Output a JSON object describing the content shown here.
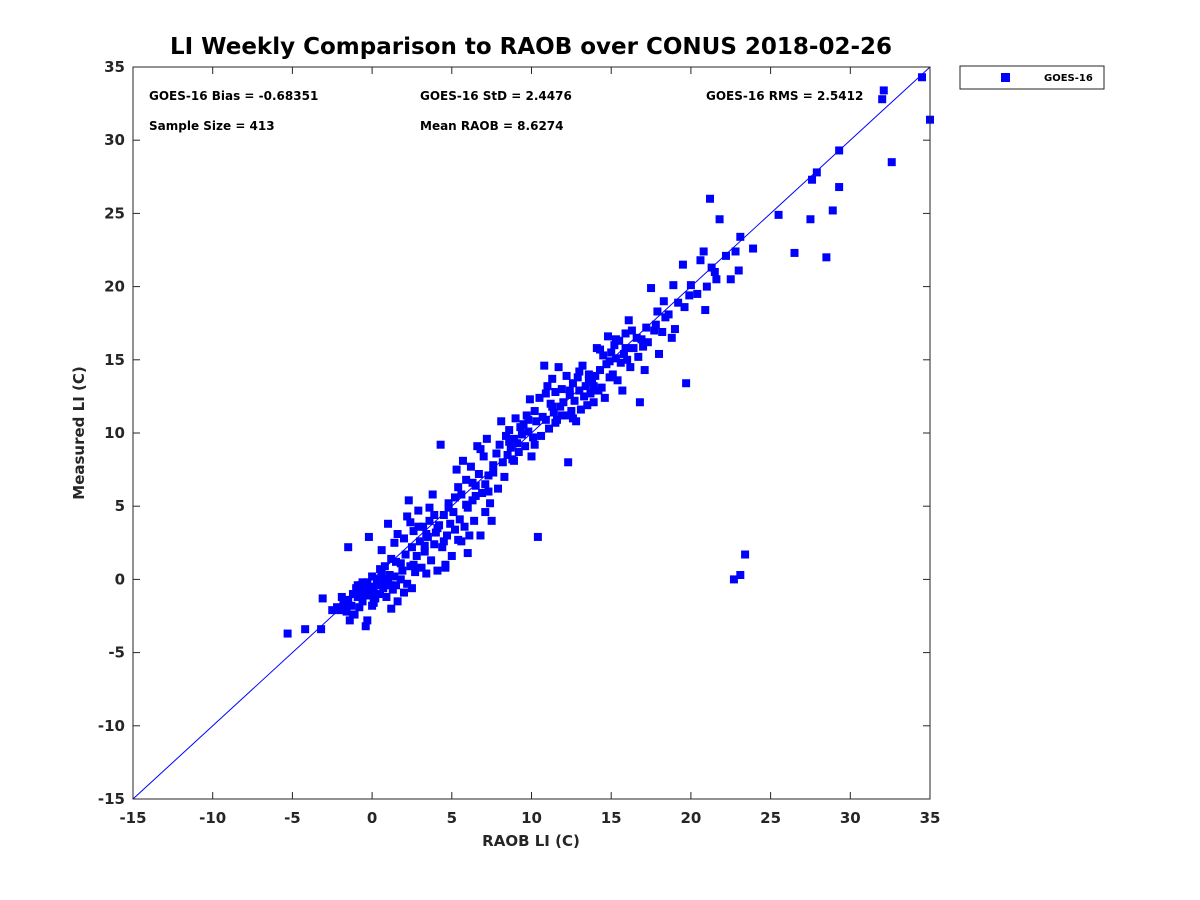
{
  "chart_data": {
    "type": "scatter",
    "title": "LI Weekly Comparison to RAOB over CONUS 2018-02-26",
    "xlabel": "RAOB LI (C)",
    "ylabel": "Measured LI (C)",
    "xlim": [
      -15,
      35
    ],
    "ylim": [
      -15,
      35
    ],
    "xticks": [
      "-15",
      "-10",
      "-5",
      "0",
      "5",
      "10",
      "15",
      "20",
      "25",
      "30",
      "35"
    ],
    "yticks": [
      "-15",
      "-10",
      "-5",
      "0",
      "5",
      "10",
      "15",
      "20",
      "25",
      "30",
      "35"
    ],
    "grid": false,
    "legend_position": "top-right, outside plot",
    "reference_line": {
      "label": "1:1 line",
      "from": [
        -15,
        -15
      ],
      "to": [
        35,
        35
      ],
      "color": "#0000ff"
    },
    "stats": {
      "bias": "GOES-16 Bias = -0.68351",
      "std": "GOES-16 StD = 2.4476",
      "rms": "GOES-16 RMS = 2.5412",
      "sample_size": "Sample Size = 413",
      "mean_raob": "Mean RAOB = 8.6274"
    },
    "series": [
      {
        "name": "GOES-16",
        "color": "#0000ff",
        "marker": "square",
        "points": [
          [
            -5.3,
            -3.7
          ],
          [
            -4.2,
            -3.4
          ],
          [
            -3.2,
            -3.4
          ],
          [
            -3.1,
            -1.3
          ],
          [
            -2.5,
            -2.1
          ],
          [
            -2.2,
            -1.9
          ],
          [
            -2.0,
            -2.1
          ],
          [
            -1.8,
            -1.6
          ],
          [
            -1.6,
            -2.2
          ],
          [
            -1.5,
            -1.4
          ],
          [
            -1.4,
            -2.8
          ],
          [
            -1.3,
            -1.8
          ],
          [
            -1.2,
            -1.0
          ],
          [
            -1.1,
            -2.4
          ],
          [
            -1.0,
            -0.6
          ],
          [
            -0.9,
            -1.2
          ],
          [
            -0.8,
            -1.9
          ],
          [
            -0.7,
            -0.4
          ],
          [
            -0.6,
            -1.5
          ],
          [
            -0.5,
            -0.9
          ],
          [
            -0.4,
            -3.2
          ],
          [
            -0.3,
            -0.2
          ],
          [
            -0.3,
            -2.8
          ],
          [
            -0.2,
            -1.1
          ],
          [
            -0.1,
            -0.5
          ],
          [
            0.0,
            -1.8
          ],
          [
            0.0,
            0.2
          ],
          [
            0.1,
            -0.8
          ],
          [
            0.2,
            -1.3
          ],
          [
            0.3,
            0.0
          ],
          [
            0.4,
            -0.3
          ],
          [
            0.5,
            -1.0
          ],
          [
            0.6,
            0.4
          ],
          [
            0.7,
            -0.6
          ],
          [
            0.8,
            0.9
          ],
          [
            0.9,
            -1.2
          ],
          [
            1.0,
            -0.1
          ],
          [
            1.1,
            0.3
          ],
          [
            1.2,
            -2.0
          ],
          [
            1.3,
            -0.7
          ],
          [
            1.4,
            0.2
          ],
          [
            1.5,
            -0.4
          ],
          [
            1.6,
            -1.5
          ],
          [
            1.8,
            0.0
          ],
          [
            2.0,
            -0.9
          ],
          [
            2.2,
            -0.3
          ],
          [
            2.5,
            -0.6
          ],
          [
            -1.5,
            2.2
          ],
          [
            -0.2,
            2.9
          ],
          [
            0.6,
            2.0
          ],
          [
            1.0,
            3.8
          ],
          [
            1.2,
            1.4
          ],
          [
            1.4,
            2.5
          ],
          [
            1.6,
            3.1
          ],
          [
            1.8,
            1.1
          ],
          [
            2.0,
            2.8
          ],
          [
            2.2,
            4.3
          ],
          [
            2.3,
            5.4
          ],
          [
            2.4,
            0.9
          ],
          [
            2.5,
            2.2
          ],
          [
            2.6,
            3.3
          ],
          [
            2.7,
            0.5
          ],
          [
            2.8,
            1.6
          ],
          [
            2.9,
            4.7
          ],
          [
            3.0,
            2.6
          ],
          [
            3.1,
            0.8
          ],
          [
            3.2,
            3.6
          ],
          [
            3.3,
            1.9
          ],
          [
            3.4,
            0.4
          ],
          [
            3.5,
            2.9
          ],
          [
            3.6,
            4.0
          ],
          [
            3.7,
            1.3
          ],
          [
            3.8,
            5.8
          ],
          [
            3.9,
            2.4
          ],
          [
            4.0,
            3.2
          ],
          [
            4.1,
            0.6
          ],
          [
            4.2,
            3.7
          ],
          [
            4.3,
            9.2
          ],
          [
            4.4,
            2.2
          ],
          [
            4.5,
            4.4
          ],
          [
            4.6,
            1.0
          ],
          [
            4.7,
            3.0
          ],
          [
            4.8,
            5.2
          ],
          [
            4.9,
            3.8
          ],
          [
            5.0,
            1.6
          ],
          [
            5.1,
            4.6
          ],
          [
            5.2,
            3.4
          ],
          [
            5.3,
            7.5
          ],
          [
            5.4,
            2.7
          ],
          [
            5.5,
            4.1
          ],
          [
            5.6,
            5.8
          ],
          [
            5.7,
            8.1
          ],
          [
            5.8,
            3.6
          ],
          [
            5.9,
            6.8
          ],
          [
            6.0,
            4.9
          ],
          [
            6.1,
            3.0
          ],
          [
            6.2,
            7.7
          ],
          [
            6.3,
            5.4
          ],
          [
            6.4,
            4.0
          ],
          [
            6.5,
            6.4
          ],
          [
            6.6,
            9.1
          ],
          [
            6.7,
            7.2
          ],
          [
            6.8,
            3.0
          ],
          [
            6.9,
            5.9
          ],
          [
            7.0,
            8.4
          ],
          [
            7.1,
            6.5
          ],
          [
            7.2,
            9.6
          ],
          [
            7.3,
            7.1
          ],
          [
            7.4,
            5.2
          ],
          [
            7.5,
            4.0
          ],
          [
            7.6,
            7.8
          ],
          [
            7.8,
            8.6
          ],
          [
            7.9,
            6.2
          ],
          [
            8.0,
            9.2
          ],
          [
            8.1,
            10.8
          ],
          [
            8.2,
            8.0
          ],
          [
            8.3,
            7.0
          ],
          [
            8.4,
            9.8
          ],
          [
            8.5,
            8.5
          ],
          [
            8.6,
            10.2
          ],
          [
            8.7,
            9.0
          ],
          [
            8.8,
            8.2
          ],
          [
            8.9,
            9.6
          ],
          [
            9.0,
            11.0
          ],
          [
            9.1,
            9.3
          ],
          [
            9.2,
            8.7
          ],
          [
            9.3,
            10.4
          ],
          [
            9.4,
            9.9
          ],
          [
            9.5,
            10.6
          ],
          [
            9.6,
            9.1
          ],
          [
            9.7,
            11.2
          ],
          [
            9.8,
            10.1
          ],
          [
            9.9,
            12.3
          ],
          [
            10.0,
            8.4
          ],
          [
            10.1,
            9.7
          ],
          [
            10.2,
            11.5
          ],
          [
            10.3,
            10.8
          ],
          [
            10.4,
            2.9
          ],
          [
            10.5,
            12.4
          ],
          [
            10.6,
            9.8
          ],
          [
            10.7,
            11.1
          ],
          [
            10.8,
            14.6
          ],
          [
            10.9,
            10.9
          ],
          [
            11.0,
            13.2
          ],
          [
            11.1,
            10.3
          ],
          [
            11.2,
            12.0
          ],
          [
            11.3,
            13.7
          ],
          [
            11.4,
            11.4
          ],
          [
            11.5,
            12.8
          ],
          [
            11.6,
            10.9
          ],
          [
            11.7,
            14.5
          ],
          [
            11.8,
            11.8
          ],
          [
            11.9,
            13.0
          ],
          [
            12.0,
            12.1
          ],
          [
            12.1,
            11.2
          ],
          [
            12.2,
            13.9
          ],
          [
            12.3,
            8.0
          ],
          [
            12.4,
            12.6
          ],
          [
            12.5,
            11.5
          ],
          [
            12.6,
            13.4
          ],
          [
            12.7,
            12.2
          ],
          [
            12.8,
            10.8
          ],
          [
            12.9,
            13.8
          ],
          [
            13.0,
            12.9
          ],
          [
            13.1,
            11.6
          ],
          [
            13.2,
            14.6
          ],
          [
            13.3,
            12.5
          ],
          [
            13.4,
            13.2
          ],
          [
            13.5,
            11.9
          ],
          [
            13.6,
            14.0
          ],
          [
            13.7,
            12.7
          ],
          [
            13.8,
            13.5
          ],
          [
            13.9,
            12.1
          ],
          [
            14.0,
            13.9
          ],
          [
            14.1,
            15.8
          ],
          [
            14.2,
            12.9
          ],
          [
            14.3,
            14.3
          ],
          [
            14.4,
            13.1
          ],
          [
            14.5,
            15.3
          ],
          [
            14.6,
            12.4
          ],
          [
            14.7,
            14.7
          ],
          [
            14.8,
            16.6
          ],
          [
            14.9,
            13.8
          ],
          [
            15.0,
            15.5
          ],
          [
            15.1,
            14.0
          ],
          [
            15.2,
            16.0
          ],
          [
            15.3,
            15.1
          ],
          [
            15.4,
            13.6
          ],
          [
            15.5,
            16.3
          ],
          [
            15.6,
            14.8
          ],
          [
            15.7,
            12.9
          ],
          [
            15.8,
            15.4
          ],
          [
            15.9,
            16.8
          ],
          [
            16.0,
            15.0
          ],
          [
            16.1,
            17.7
          ],
          [
            16.2,
            14.5
          ],
          [
            16.4,
            15.8
          ],
          [
            16.6,
            16.5
          ],
          [
            16.8,
            12.1
          ],
          [
            17.0,
            15.9
          ],
          [
            17.1,
            14.3
          ],
          [
            17.2,
            17.2
          ],
          [
            17.3,
            16.2
          ],
          [
            17.5,
            19.9
          ],
          [
            17.7,
            17.0
          ],
          [
            17.9,
            18.3
          ],
          [
            18.0,
            15.4
          ],
          [
            18.2,
            16.9
          ],
          [
            18.4,
            17.9
          ],
          [
            18.3,
            19.0
          ],
          [
            18.8,
            16.5
          ],
          [
            18.9,
            20.1
          ],
          [
            19.0,
            17.1
          ],
          [
            19.2,
            18.9
          ],
          [
            19.5,
            21.5
          ],
          [
            19.6,
            18.6
          ],
          [
            19.7,
            13.4
          ],
          [
            20.0,
            20.1
          ],
          [
            20.4,
            19.5
          ],
          [
            20.6,
            21.8
          ],
          [
            20.8,
            22.4
          ],
          [
            20.9,
            18.4
          ],
          [
            21.0,
            20.0
          ],
          [
            21.2,
            26.0
          ],
          [
            21.3,
            21.3
          ],
          [
            21.6,
            20.5
          ],
          [
            21.8,
            24.6
          ],
          [
            22.2,
            22.1
          ],
          [
            22.5,
            20.5
          ],
          [
            23.0,
            21.1
          ],
          [
            23.1,
            23.4
          ],
          [
            23.9,
            22.6
          ],
          [
            25.5,
            24.9
          ],
          [
            26.5,
            22.3
          ],
          [
            27.5,
            24.6
          ],
          [
            27.6,
            27.3
          ],
          [
            27.9,
            27.8
          ],
          [
            28.5,
            22.0
          ],
          [
            28.9,
            25.2
          ],
          [
            29.3,
            29.3
          ],
          [
            29.3,
            26.8
          ],
          [
            32.0,
            32.8
          ],
          [
            32.1,
            33.4
          ],
          [
            32.6,
            28.5
          ],
          [
            34.5,
            34.3
          ],
          [
            35.0,
            31.4
          ],
          [
            23.4,
            1.7
          ],
          [
            23.1,
            0.3
          ],
          [
            22.7,
            0.0
          ],
          [
            4.6,
            0.8
          ],
          [
            6.0,
            1.8
          ],
          [
            5.6,
            2.6
          ],
          [
            3.9,
            4.4
          ],
          [
            2.9,
            3.6
          ],
          [
            4.8,
            4.9
          ],
          [
            6.5,
            5.7
          ],
          [
            7.1,
            4.6
          ],
          [
            6.3,
            6.6
          ],
          [
            5.2,
            5.6
          ],
          [
            3.4,
            3.1
          ],
          [
            2.1,
            1.7
          ],
          [
            1.5,
            1.2
          ],
          [
            0.5,
            0.7
          ],
          [
            -0.2,
            -0.7
          ],
          [
            0.1,
            -1.6
          ],
          [
            1.1,
            -0.4
          ],
          [
            -0.6,
            -0.2
          ],
          [
            -1.9,
            -1.2
          ],
          [
            -1.2,
            -2.4
          ],
          [
            8.6,
            9.4
          ],
          [
            9.8,
            10.9
          ],
          [
            11.9,
            11.2
          ],
          [
            12.4,
            12.9
          ],
          [
            13.6,
            13.6
          ],
          [
            14.9,
            14.9
          ],
          [
            15.9,
            15.8
          ],
          [
            16.9,
            16.4
          ],
          [
            10.9,
            12.7
          ],
          [
            11.5,
            10.7
          ],
          [
            13.0,
            14.2
          ],
          [
            14.3,
            15.7
          ],
          [
            16.3,
            17.0
          ],
          [
            17.8,
            17.4
          ],
          [
            7.6,
            7.3
          ],
          [
            6.8,
            8.9
          ],
          [
            5.4,
            6.3
          ],
          [
            4.1,
            3.5
          ],
          [
            3.3,
            2.3
          ],
          [
            2.6,
            1.0
          ],
          [
            1.9,
            0.6
          ],
          [
            0.8,
            0.0
          ],
          [
            0.3,
            -0.4
          ],
          [
            -0.7,
            -1.0
          ],
          [
            -1.7,
            -1.8
          ],
          [
            -0.9,
            -0.4
          ],
          [
            0.6,
            -0.2
          ],
          [
            2.4,
            3.9
          ],
          [
            3.6,
            4.9
          ],
          [
            4.5,
            2.6
          ],
          [
            5.9,
            5.1
          ],
          [
            7.3,
            6.0
          ],
          [
            8.9,
            8.1
          ],
          [
            10.2,
            9.2
          ],
          [
            11.3,
            11.8
          ],
          [
            12.6,
            11.0
          ],
          [
            13.9,
            13.2
          ],
          [
            15.3,
            16.4
          ],
          [
            16.7,
            15.2
          ],
          [
            18.6,
            18.1
          ],
          [
            19.9,
            19.4
          ],
          [
            21.5,
            21.0
          ],
          [
            22.8,
            22.4
          ]
        ]
      }
    ]
  }
}
